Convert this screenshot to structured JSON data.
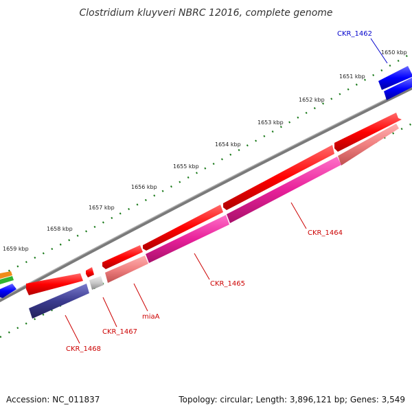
{
  "title": "Clostridium kluyveri NBRC 12016, complete genome",
  "footer": {
    "accession": "Accession: NC_011837",
    "summary": "Topology: circular; Length: 3,896,121 bp; Genes: 3,549"
  },
  "colors": {
    "backbone": "#7a7a7a",
    "tick": "#1a7a1a",
    "forward_red": "#ff0000",
    "label_red": "#cc0000",
    "label_blue": "#0000cc",
    "pink": "#e8209a",
    "salmon": "#f08080",
    "gray": "#c8c8c8",
    "navy": "#3b3b8f",
    "blue": "#0000ff"
  },
  "ticks": [
    "1650 kbp",
    "1651 kbp",
    "1652 kbp",
    "1653 kbp",
    "1654 kbp",
    "1655 kbp",
    "1656 kbp",
    "1657 kbp",
    "1658 kbp",
    "1659 kbp"
  ],
  "gene_labels": [
    "CKR_1462",
    "CKR_1464",
    "CKR_1465",
    "miaA",
    "CKR_1467",
    "CKR_1468"
  ]
}
